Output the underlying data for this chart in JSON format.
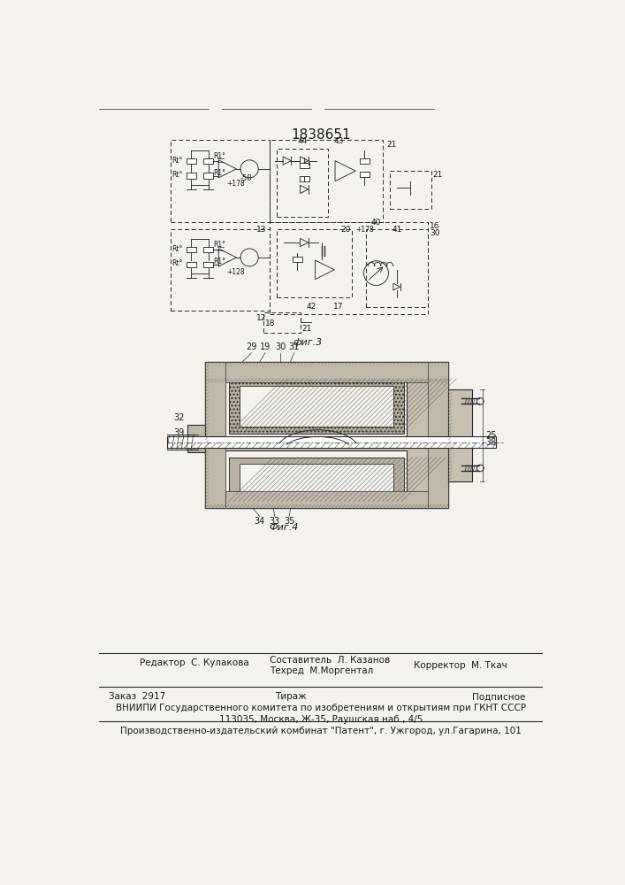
{
  "patent_number": "1838651",
  "fig3_label": "фиг.3",
  "fig4_label": "Фиг.4",
  "editor_line": "Редактор  С. Кулакова",
  "composer_line": "Составитель  Л. Казанов",
  "techred_line": "Техред  М.Моргентал",
  "corrector_line": "Корректор  М. Ткач",
  "zakaz_line": "Заказ  2917",
  "tirazh_line": "Тираж",
  "podpisnoe_line": "Подписное",
  "vniiipi_line1": "ВНИИПИ Государственного комитета по изобретениям и открытиям при ГКНТ СССР",
  "vniiipi_line2": "113035, Москва, Ж-35, Раушская наб., 4/5",
  "production_line": "Производственно-издательский комбинат \"Патент\", г. Ужгород, ул.Гагарина, 101",
  "bg_color": "#f5f2ee",
  "line_color": "#2a2a2a",
  "text_color": "#1a1a1a",
  "hatch_color": "#555555"
}
